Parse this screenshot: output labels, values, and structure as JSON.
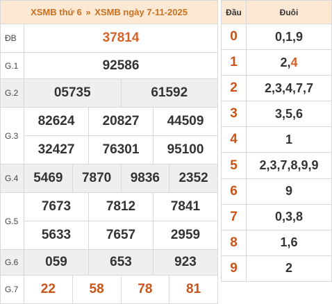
{
  "header": {
    "part1": "XSMB thứ 6",
    "separator": "»",
    "part2": "XSMB ngày 7-11-2025"
  },
  "prizes": {
    "db": {
      "label": "ĐB",
      "values": [
        "37814"
      ]
    },
    "g1": {
      "label": "G.1",
      "values": [
        "92586"
      ]
    },
    "g2": {
      "label": "G.2",
      "values": [
        "05735",
        "61592"
      ]
    },
    "g3": {
      "label": "G.3",
      "values": [
        "82624",
        "20827",
        "44509",
        "32427",
        "76301",
        "95100"
      ]
    },
    "g4": {
      "label": "G.4",
      "values": [
        "5469",
        "7870",
        "9836",
        "2352"
      ]
    },
    "g5": {
      "label": "G.5",
      "values": [
        "7673",
        "7812",
        "7841",
        "5633",
        "7657",
        "2959"
      ]
    },
    "g6": {
      "label": "G.6",
      "values": [
        "059",
        "653",
        "923"
      ]
    },
    "g7": {
      "label": "G.7",
      "values": [
        "22",
        "58",
        "78",
        "81"
      ]
    }
  },
  "loto": {
    "head_label": "Đầu",
    "tail_label": "Đuôi",
    "rows": [
      {
        "head": "0",
        "tail": "0,1,9"
      },
      {
        "head": "1",
        "tail_pre": "2,",
        "tail_hl": "4"
      },
      {
        "head": "2",
        "tail": "2,3,4,7,7"
      },
      {
        "head": "3",
        "tail": "3,5,6"
      },
      {
        "head": "4",
        "tail": "1"
      },
      {
        "head": "5",
        "tail": "2,3,7,8,9,9"
      },
      {
        "head": "6",
        "tail": "9"
      },
      {
        "head": "7",
        "tail": "0,3,8"
      },
      {
        "head": "8",
        "tail": "1,6"
      },
      {
        "head": "9",
        "tail": "2"
      }
    ]
  },
  "colors": {
    "header_bg": "#fde8d4",
    "accent": "#c8541a",
    "special": "#d5622a",
    "shade": "#efefef"
  }
}
